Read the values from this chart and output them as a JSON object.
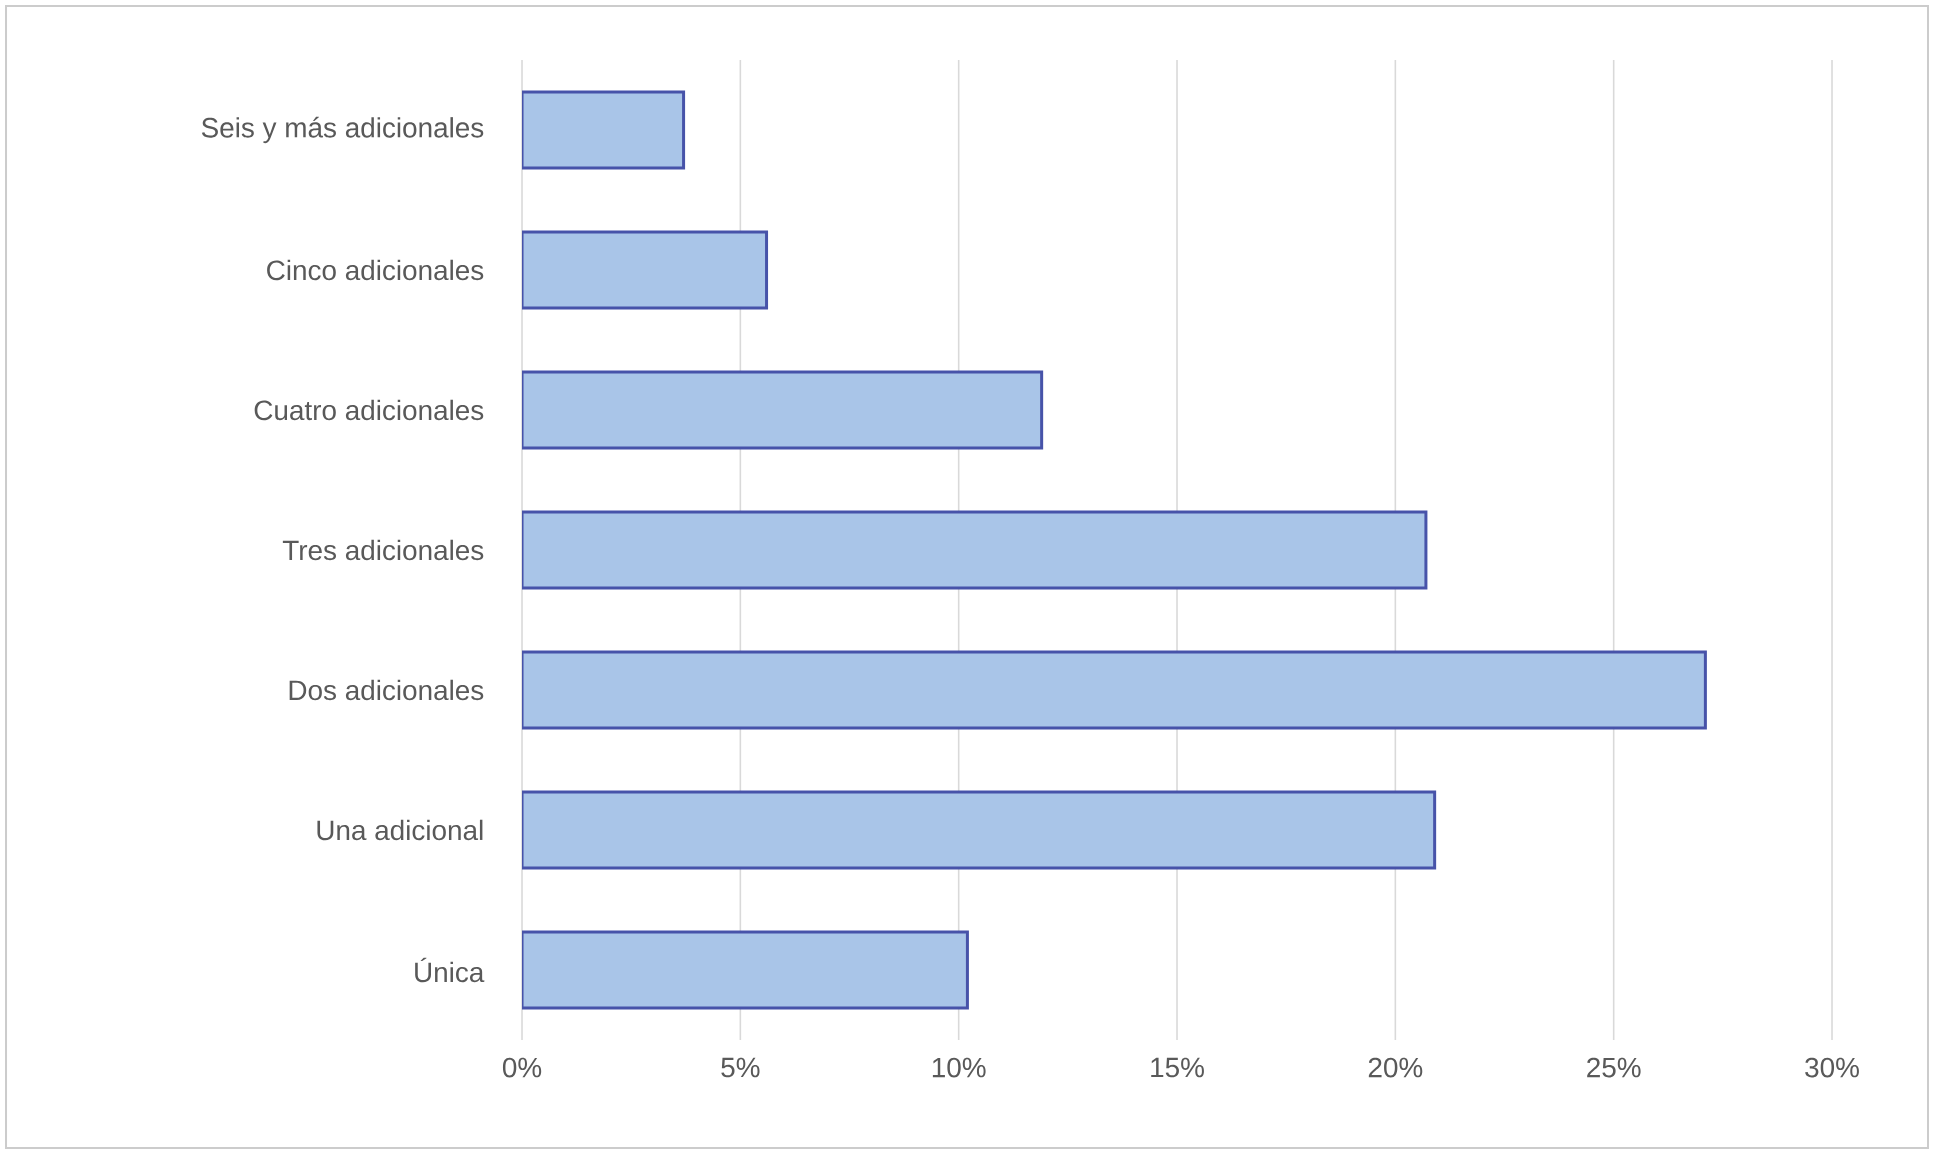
{
  "chart_data": {
    "type": "bar",
    "orientation": "horizontal",
    "categories": [
      "Seis y más adicionales",
      "Cinco adicionales",
      "Cuatro adicionales",
      "Tres adicionales",
      "Dos adicionales",
      "Una adicional",
      "Única"
    ],
    "values": [
      3.7,
      5.6,
      11.9,
      20.7,
      27.1,
      20.9,
      10.2
    ],
    "color": "#a9c5e8",
    "xlim": [
      0,
      30
    ],
    "xticks": [
      {
        "value": 0,
        "label": "0%"
      },
      {
        "value": 5,
        "label": "5%"
      },
      {
        "value": 10,
        "label": "10%"
      },
      {
        "value": 15,
        "label": "15%"
      },
      {
        "value": 20,
        "label": "20%"
      },
      {
        "value": 25,
        "label": "25%"
      },
      {
        "value": 30,
        "label": "30%"
      }
    ],
    "grid": "x"
  }
}
